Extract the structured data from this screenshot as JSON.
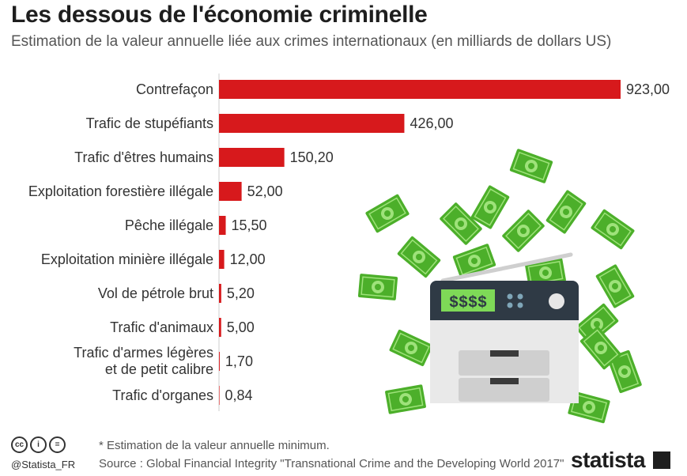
{
  "header": {
    "title": "Les dessous de l'économie criminelle",
    "subtitle": "Estimation de la valeur annuelle liée aux crimes internationaux (en milliards de dollars US)"
  },
  "chart_data": {
    "type": "bar",
    "orientation": "horizontal",
    "title": "Les dessous de l'économie criminelle",
    "subtitle": "Estimation de la valeur annuelle liée aux crimes internationaux (en milliards de dollars US)",
    "categories": [
      [
        "Contrefaçon"
      ],
      [
        "Trafic de stupéfiants"
      ],
      [
        "Trafic d'êtres humains"
      ],
      [
        "Exploitation forestière illégale"
      ],
      [
        "Pêche illégale"
      ],
      [
        "Exploitation minière illégale"
      ],
      [
        "Vol de pétrole brut"
      ],
      [
        "Trafic d'animaux"
      ],
      [
        "Trafic d'armes légères",
        "et de petit calibre"
      ],
      [
        "Trafic d'organes"
      ]
    ],
    "values": [
      923.0,
      426.0,
      150.2,
      52.0,
      15.5,
      12.0,
      5.2,
      5.0,
      1.7,
      0.84
    ],
    "value_labels": [
      "923,00",
      "426,00",
      "150,20",
      "52,00",
      "15,50",
      "12,00",
      "5,20",
      "5,00",
      "1,70",
      "0,84"
    ],
    "xlim": [
      0,
      923
    ],
    "grid": false,
    "bar_color": "#d7191c"
  },
  "illustration": {
    "icon": "money-printer-icon",
    "display_text": "$$$$",
    "colors": {
      "money": "#4caf2a",
      "printer_body": "#e6e6e6",
      "printer_top": "#2f3a45",
      "display": "#7ed957"
    }
  },
  "footer": {
    "note": "* Estimation de la valeur annuelle minimum.",
    "source": "Source : Global Financial Integrity \"Transnational Crime and the Developing World 2017\"",
    "handle": "@Statista_FR",
    "brand": "statista",
    "license_icons": [
      "cc-icon",
      "by-icon",
      "nd-icon"
    ]
  }
}
